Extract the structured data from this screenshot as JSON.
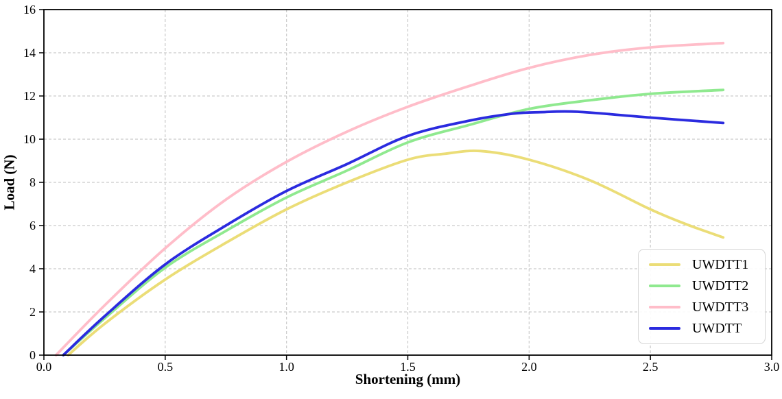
{
  "chart_data": {
    "type": "line",
    "title": "",
    "xlabel": "Shortening (mm)",
    "ylabel": "Load (N)",
    "xlim": [
      0.0,
      3.0
    ],
    "ylim": [
      0,
      16
    ],
    "xticks": {
      "values": [
        0.0,
        0.5,
        1.0,
        1.5,
        2.0,
        2.5,
        3.0
      ],
      "labels": [
        "0.0",
        "0.5",
        "1.0",
        "1.5",
        "2.0",
        "2.5",
        "3.0"
      ]
    },
    "yticks": {
      "values": [
        0,
        2,
        4,
        6,
        8,
        10,
        12,
        14,
        16
      ],
      "labels": [
        "0",
        "2",
        "4",
        "6",
        "8",
        "10",
        "12",
        "14",
        "16"
      ]
    },
    "grid": "dashed-both-axes",
    "legend_position": "lower-right",
    "series": [
      {
        "name": "UWDTT1",
        "color": "#EBDD77",
        "x": [
          0.1,
          0.25,
          0.5,
          0.75,
          1.0,
          1.25,
          1.5,
          1.65,
          1.8,
          2.0,
          2.25,
          2.5,
          2.65,
          2.8
        ],
        "y": [
          0,
          1.45,
          3.5,
          5.2,
          6.75,
          8.0,
          9.05,
          9.32,
          9.45,
          9.05,
          8.1,
          6.75,
          6.05,
          5.45
        ]
      },
      {
        "name": "UWDTT2",
        "color": "#8FE98F",
        "x": [
          0.08,
          0.25,
          0.5,
          0.75,
          1.0,
          1.25,
          1.5,
          1.75,
          2.0,
          2.25,
          2.5,
          2.8
        ],
        "y": [
          0,
          1.7,
          4.05,
          5.75,
          7.3,
          8.55,
          9.85,
          10.65,
          11.4,
          11.8,
          12.1,
          12.28
        ]
      },
      {
        "name": "UWDTT3",
        "color": "#FFBDC9",
        "x": [
          0.05,
          0.25,
          0.5,
          0.75,
          1.0,
          1.25,
          1.5,
          1.75,
          2.0,
          2.25,
          2.5,
          2.8
        ],
        "y": [
          0,
          2.3,
          4.95,
          7.2,
          8.95,
          10.35,
          11.5,
          12.45,
          13.3,
          13.9,
          14.25,
          14.45
        ]
      },
      {
        "name": "UWDTT",
        "color": "#2B2BDF",
        "x": [
          0.08,
          0.25,
          0.5,
          0.75,
          1.0,
          1.25,
          1.5,
          1.75,
          1.93,
          2.05,
          2.2,
          2.5,
          2.8
        ],
        "y": [
          0,
          1.8,
          4.2,
          6.0,
          7.6,
          8.85,
          10.15,
          10.85,
          11.18,
          11.25,
          11.27,
          11.0,
          10.75
        ]
      }
    ]
  },
  "colors": {
    "background": "#ffffff",
    "grid": "#c9c9c9",
    "axis": "#000000",
    "text": "#000000",
    "legend_border": "#d5d5d5"
  }
}
